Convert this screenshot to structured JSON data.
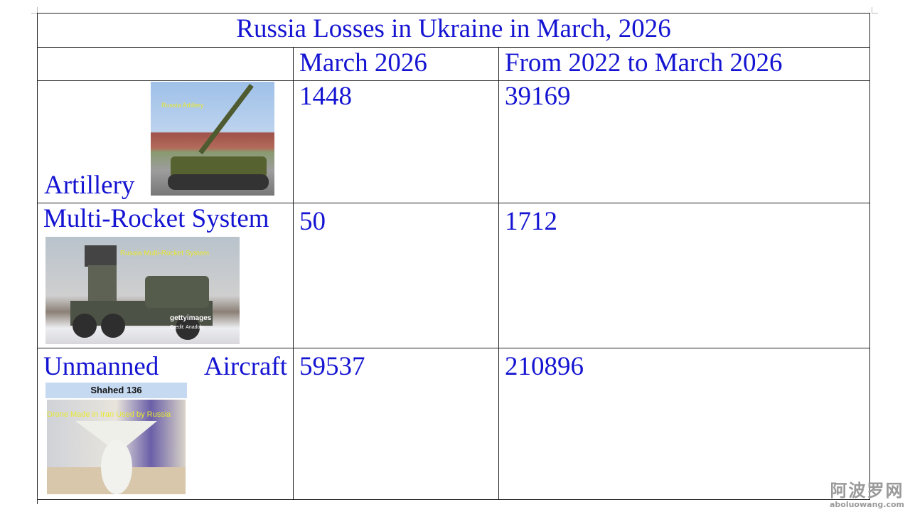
{
  "table": {
    "title": "Russia Losses in Ukraine in March, 2026",
    "headers": [
      "",
      "March 2026",
      "From 2022 to March 2026"
    ],
    "rows": [
      {
        "label": "Artillery",
        "march": "1448",
        "total": "39169",
        "image_caption": "Russia Artillery"
      },
      {
        "label": "Multi-Rocket System",
        "march": "50",
        "total": "1712",
        "image_caption": "Russia Multi-Rocket System",
        "image_credit_brand": "gettyimages",
        "image_credit": "Credit: Anadolu"
      },
      {
        "label_words": [
          "Unmanned",
          "Aircraft"
        ],
        "march": "59537",
        "total": "210896",
        "image_banner": "Shahed 136",
        "image_caption": "Drone Made in Iran Used by Russia"
      }
    ]
  },
  "watermark": {
    "cn": "阿波罗网",
    "en": "aboluowang.com"
  },
  "colors": {
    "text": "#1414d2",
    "caption": "#e8e830",
    "banner": "#c5d9f1"
  }
}
